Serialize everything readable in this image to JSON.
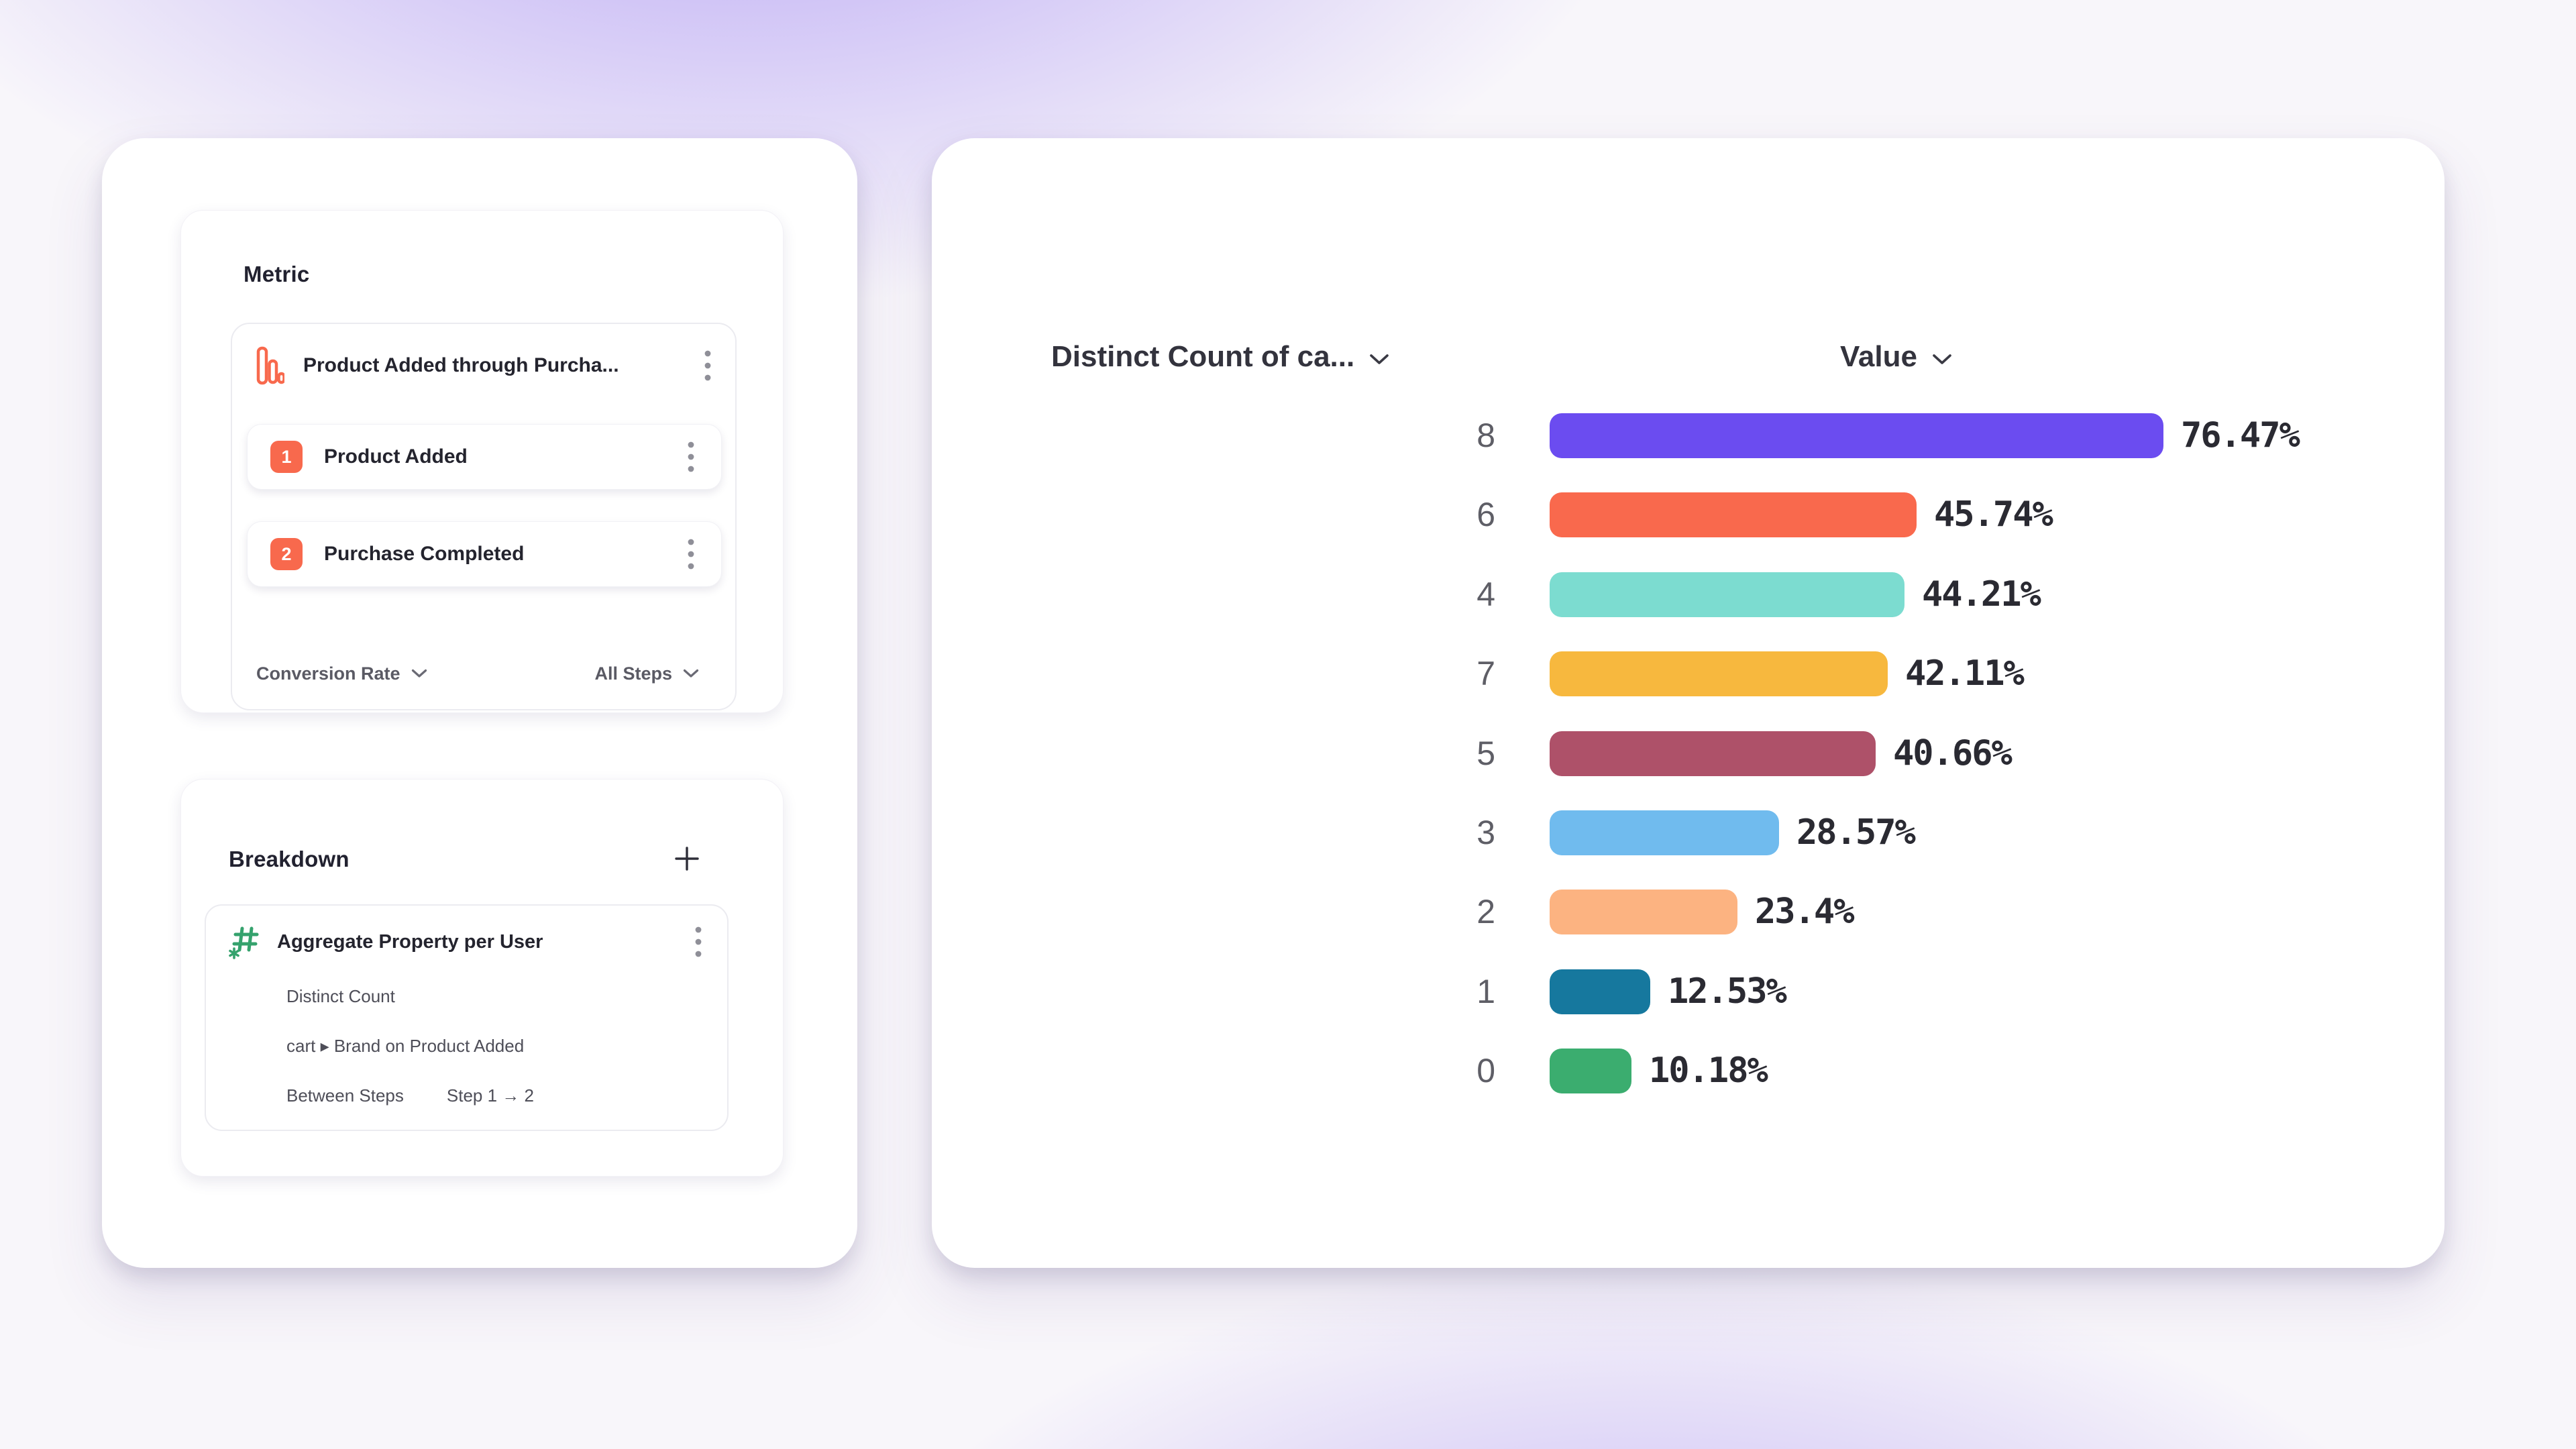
{
  "colors": {
    "coral_accent": "#F8694D",
    "green_accent": "#35A26D",
    "background_purple": "#B4A1F1",
    "card_white": "#FFFFFF"
  },
  "metric_panel": {
    "title": "Metric",
    "funnel": {
      "icon": "funnel-chart-icon",
      "title": "Product Added through Purcha...",
      "menu_icon": "kebab-menu-icon",
      "steps": [
        {
          "number": "1",
          "label": "Product Added"
        },
        {
          "number": "2",
          "label": "Purchase Completed"
        }
      ],
      "footer": {
        "left_label": "Conversion Rate",
        "right_label": "All Steps"
      }
    }
  },
  "breakdown_panel": {
    "title": "Breakdown",
    "add_button_icon": "plus-icon",
    "item": {
      "icon": "aggregate-property-icon",
      "title": "Aggregate Property per User",
      "detail_rows": [
        "Distinct Count",
        "cart ▸ Brand on Product Added"
      ],
      "between_steps_label": "Between Steps",
      "between_steps_value": "Step 1 → 2"
    }
  },
  "chart": {
    "columns": [
      {
        "label": "Distinct Count of ca..."
      },
      {
        "label": "Value"
      }
    ],
    "rows": [
      {
        "category": "8",
        "value": 76.47,
        "display": "76.47%",
        "color": "#6B4CF0"
      },
      {
        "category": "6",
        "value": 45.74,
        "display": "45.74%",
        "color": "#F9694D"
      },
      {
        "category": "4",
        "value": 44.21,
        "display": "44.21%",
        "color": "#7CDCD0"
      },
      {
        "category": "7",
        "value": 42.11,
        "display": "42.11%",
        "color": "#F7B83E"
      },
      {
        "category": "5",
        "value": 40.66,
        "display": "40.66%",
        "color": "#AE5169"
      },
      {
        "category": "3",
        "value": 28.57,
        "display": "28.57%",
        "color": "#70BBEE"
      },
      {
        "category": "2",
        "value": 23.4,
        "display": "23.4%",
        "color": "#FCB381"
      },
      {
        "category": "1",
        "value": 12.53,
        "display": "12.53%",
        "color": "#16789E"
      },
      {
        "category": "0",
        "value": 10.18,
        "display": "10.18%",
        "color": "#3BAD6F"
      }
    ]
  },
  "chart_data": {
    "type": "bar",
    "orientation": "horizontal",
    "title": "",
    "columns": [
      "Distinct Count of ca...",
      "Value"
    ],
    "categories": [
      "8",
      "6",
      "4",
      "7",
      "5",
      "3",
      "2",
      "1",
      "0"
    ],
    "values": [
      76.47,
      45.74,
      44.21,
      42.11,
      40.66,
      28.57,
      23.4,
      12.53,
      10.18
    ],
    "value_labels": [
      "76.47%",
      "45.74%",
      "44.21%",
      "42.11%",
      "40.66%",
      "28.57%",
      "23.4%",
      "12.53%",
      "10.18%"
    ],
    "bar_colors": [
      "#6B4CF0",
      "#F9694D",
      "#7CDCD0",
      "#F7B83E",
      "#AE5169",
      "#70BBEE",
      "#FCB381",
      "#16789E",
      "#3BAD6F"
    ],
    "xlim": [
      0,
      100
    ],
    "grid": false,
    "legend": false,
    "unit": "%"
  }
}
